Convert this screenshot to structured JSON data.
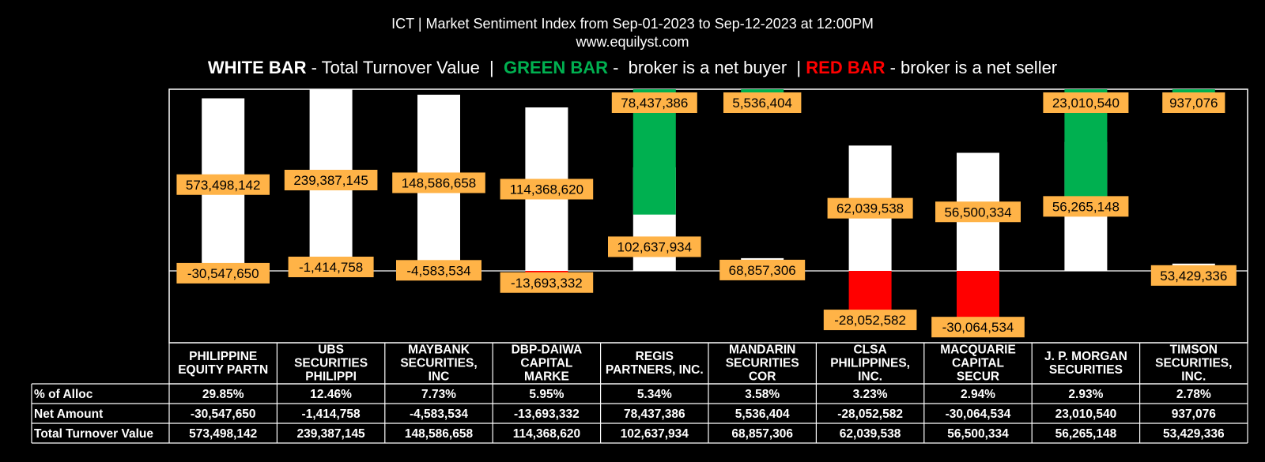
{
  "header": {
    "title": "ICT | Market Sentiment Index from Sep-01-2023 to Sep-12-2023 at 12:00PM",
    "website": "www.equilyst.com",
    "legend": {
      "white_label": "WHITE BAR",
      "white_desc": " - Total Turnover Value  |  ",
      "green_label": "GREEN BAR",
      "green_desc": " -  broker is a net buyer  | ",
      "red_label": "RED BAR",
      "red_desc": " - broker is a net seller"
    }
  },
  "colors": {
    "background": "#000000",
    "turnover_bar": "#ffffff",
    "net_buyer_bar": "#00b050",
    "net_seller_bar": "#ff0000",
    "data_label_bg": "#ffb347"
  },
  "table": {
    "row_labels": [
      "% of Alloc",
      "Net Amount",
      "Total Turnover Value"
    ],
    "alloc": [
      "29.85%",
      "12.46%",
      "7.73%",
      "5.95%",
      "5.34%",
      "3.58%",
      "3.23%",
      "2.94%",
      "2.93%",
      "2.78%"
    ],
    "net_amount_text": [
      "-30,547,650",
      "-1,414,758",
      "-4,583,534",
      "-13,693,332",
      "78,437,386",
      "5,536,404",
      "-28,052,582",
      "-30,064,534",
      "23,010,540",
      "937,076"
    ],
    "turnover_text": [
      "573,498,142",
      "239,387,145",
      "148,586,658",
      "114,368,620",
      "102,637,934",
      "68,857,306",
      "62,039,538",
      "56,500,334",
      "56,265,148",
      "53,429,336"
    ]
  },
  "chart_data": {
    "type": "bar",
    "categories": [
      [
        "PHILIPPINE",
        "EQUITY PARTN"
      ],
      [
        "UBS",
        "SECURITIES",
        "PHILIPPI"
      ],
      [
        "MAYBANK",
        "SECURITIES,",
        "INC"
      ],
      [
        "DBP-DAIWA",
        "CAPITAL",
        "MARKE"
      ],
      [
        "REGIS",
        "PARTNERS, INC."
      ],
      [
        "MANDARIN",
        "SECURITIES",
        "COR"
      ],
      [
        "CLSA",
        "PHILIPPINES,",
        "INC."
      ],
      [
        "MACQUARIE",
        "CAPITAL",
        "SECUR"
      ],
      [
        "J. P. MORGAN",
        "SECURITIES"
      ],
      [
        "TIMSON",
        "SECURITIES,",
        "INC."
      ]
    ],
    "series": [
      {
        "name": "Total Turnover Value",
        "values": [
          573498142,
          239387145,
          148586658,
          114368620,
          102637934,
          68857306,
          62039538,
          56500334,
          56265148,
          53429336
        ],
        "labels": [
          "573,498,142",
          "239,387,145",
          "148,586,658",
          "114,368,620",
          "102,637,934",
          "68,857,306",
          "62,039,538",
          "56,500,334",
          "56,265,148",
          "53,429,336"
        ]
      },
      {
        "name": "Net Amount",
        "values": [
          -30547650,
          -1414758,
          -4583534,
          -13693332,
          78437386,
          5536404,
          -28052582,
          -30064534,
          23010540,
          937076
        ],
        "labels": [
          "-30,547,650",
          "-1,414,758",
          "-4,583,534",
          "-13,693,332",
          "78,437,386",
          "5,536,404",
          "-28,052,582",
          "-30,064,534",
          "23,010,540",
          "937,076"
        ]
      }
    ],
    "turnover_display_fraction": [
      0.95,
      1.0,
      0.97,
      0.9,
      0.57,
      0.07,
      0.69,
      0.65,
      0.71,
      0.04
    ],
    "net_display_fraction": [
      0.12,
      0.02,
      0.08,
      0.25,
      0.69,
      0.07,
      0.77,
      0.87,
      0.59,
      0.05
    ]
  }
}
